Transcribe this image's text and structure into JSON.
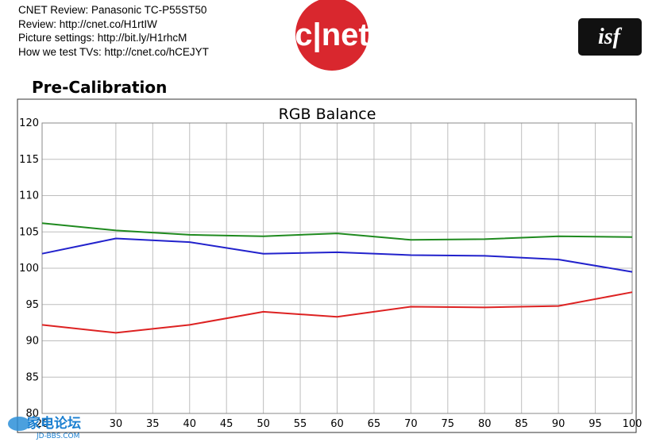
{
  "header": {
    "lines": [
      "CNET Review: Panasonic TC-P55ST50",
      "Review: http://cnet.co/H1rtIW",
      "Picture settings: http://bit.ly/H1rhcM",
      "How we test TVs: http://cnet.co/hCEJYT"
    ]
  },
  "logos": {
    "cnet_text": "c|net",
    "isf_text": "isf",
    "watermark_text": "家电论坛",
    "watermark_sub": "JD-BBS.COM"
  },
  "section_title": "Pre-Calibration",
  "chart_data": {
    "type": "line",
    "title": "RGB Balance",
    "xlabel": "",
    "ylabel": "",
    "xlim": [
      20,
      100
    ],
    "ylim": [
      80,
      120
    ],
    "x_ticks": [
      20,
      30,
      35,
      40,
      45,
      50,
      55,
      60,
      65,
      70,
      75,
      80,
      85,
      90,
      95,
      100
    ],
    "y_ticks": [
      80,
      85,
      90,
      95,
      100,
      105,
      110,
      115,
      120
    ],
    "grid": true,
    "series": [
      {
        "color": "#1f8a1f",
        "x": [
          20,
          30,
          40,
          50,
          60,
          70,
          80,
          90,
          100
        ],
        "y": [
          106.2,
          105.2,
          104.6,
          104.4,
          104.8,
          103.9,
          104.0,
          104.4,
          104.3
        ]
      },
      {
        "color": "#2222cc",
        "x": [
          20,
          30,
          40,
          50,
          60,
          70,
          80,
          90,
          100
        ],
        "y": [
          102.0,
          104.1,
          103.6,
          102.0,
          102.2,
          101.8,
          101.7,
          101.2,
          99.5
        ]
      },
      {
        "color": "#dd2222",
        "x": [
          20,
          30,
          40,
          50,
          60,
          70,
          80,
          90,
          100
        ],
        "y": [
          92.2,
          91.1,
          92.2,
          94.0,
          93.3,
          94.7,
          94.6,
          94.8,
          96.7
        ]
      }
    ]
  }
}
